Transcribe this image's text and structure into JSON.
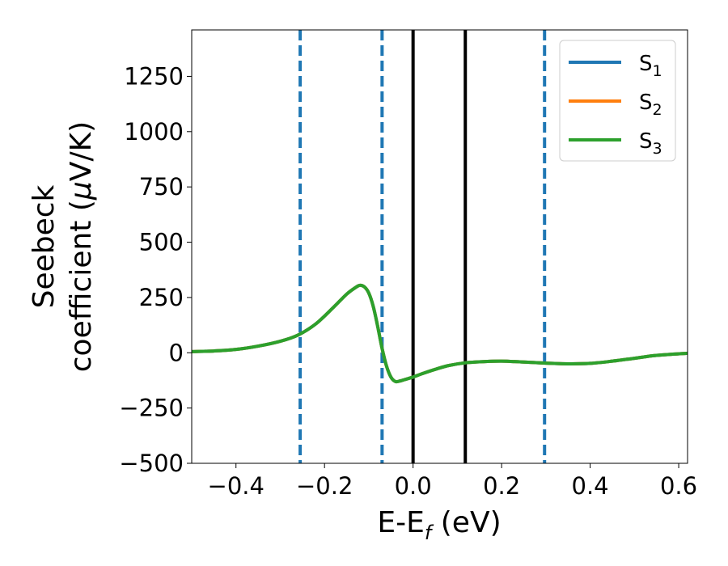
{
  "chart_data": {
    "type": "line",
    "title": "",
    "xlabel": "E-E",
    "xlabel_sub": "f",
    "xlabel_unit": " (eV)",
    "ylabel_line1": "Seebeck",
    "ylabel_line2": "coefficient  (",
    "ylabel_mu": "μ",
    "ylabel_unit": "V/K)",
    "xlim": [
      -0.5,
      0.62
    ],
    "ylim": [
      -500,
      1460
    ],
    "xticks": [
      -0.4,
      -0.2,
      0.0,
      0.2,
      0.4,
      0.6
    ],
    "xtick_labels": [
      "−0.4",
      "−0.2",
      "0.0",
      "0.2",
      "0.4",
      "0.6"
    ],
    "yticks": [
      -500,
      -250,
      0,
      250,
      500,
      750,
      1000,
      1250
    ],
    "ytick_labels": [
      "−500",
      "−250",
      "0",
      "250",
      "500",
      "750",
      "1000",
      "1250"
    ],
    "grid": false,
    "legend_position": "top-right",
    "series": [
      {
        "name": "S",
        "sub": "1",
        "color": "#1f77b4",
        "x": [
          -0.5,
          -0.45,
          -0.4,
          -0.35,
          -0.3,
          -0.26,
          -0.22,
          -0.18,
          -0.15,
          -0.13,
          -0.12,
          -0.11,
          -0.1,
          -0.09,
          -0.08,
          -0.07,
          -0.06,
          -0.05,
          -0.04,
          -0.03,
          -0.02,
          0.0,
          0.02,
          0.05,
          0.08,
          0.12,
          0.16,
          0.2,
          0.25,
          0.3,
          0.35,
          0.4,
          0.45,
          0.5,
          0.55,
          0.62
        ],
        "y": [
          5,
          8,
          15,
          30,
          52,
          80,
          130,
          205,
          265,
          295,
          305,
          298,
          270,
          210,
          120,
          20,
          -60,
          -110,
          -130,
          -128,
          -122,
          -110,
          -95,
          -75,
          -58,
          -45,
          -40,
          -38,
          -42,
          -47,
          -50,
          -48,
          -38,
          -25,
          -12,
          -2
        ]
      },
      {
        "name": "S",
        "sub": "2",
        "color": "#ff7f0e",
        "x": [
          -0.5,
          -0.45,
          -0.4,
          -0.35,
          -0.3,
          -0.26,
          -0.22,
          -0.18,
          -0.15,
          -0.13,
          -0.12,
          -0.11,
          -0.1,
          -0.09,
          -0.08,
          -0.07,
          -0.06,
          -0.05,
          -0.04,
          -0.03,
          -0.02,
          0.0,
          0.02,
          0.05,
          0.08,
          0.12,
          0.16,
          0.2,
          0.25,
          0.3,
          0.35,
          0.4,
          0.45,
          0.5,
          0.55,
          0.62
        ],
        "y": [
          5,
          8,
          15,
          30,
          52,
          80,
          130,
          205,
          265,
          295,
          305,
          298,
          270,
          210,
          120,
          20,
          -60,
          -110,
          -130,
          -128,
          -122,
          -110,
          -95,
          -75,
          -58,
          -45,
          -40,
          -38,
          -42,
          -47,
          -50,
          -48,
          -38,
          -25,
          -12,
          -2
        ]
      },
      {
        "name": "S",
        "sub": "3",
        "color": "#2ca02c",
        "x": [
          -0.5,
          -0.45,
          -0.4,
          -0.35,
          -0.3,
          -0.26,
          -0.22,
          -0.18,
          -0.15,
          -0.13,
          -0.12,
          -0.11,
          -0.1,
          -0.09,
          -0.08,
          -0.07,
          -0.06,
          -0.05,
          -0.04,
          -0.03,
          -0.02,
          0.0,
          0.02,
          0.05,
          0.08,
          0.12,
          0.16,
          0.2,
          0.25,
          0.3,
          0.35,
          0.4,
          0.45,
          0.5,
          0.55,
          0.62
        ],
        "y": [
          5,
          8,
          15,
          30,
          52,
          80,
          130,
          205,
          265,
          295,
          305,
          298,
          270,
          210,
          120,
          20,
          -60,
          -110,
          -130,
          -128,
          -122,
          -110,
          -95,
          -75,
          -58,
          -45,
          -40,
          -38,
          -42,
          -47,
          -50,
          -48,
          -38,
          -25,
          -12,
          -2
        ]
      }
    ],
    "vlines": [
      {
        "x": -0.255,
        "style": "dashed",
        "color": "#1f77b4"
      },
      {
        "x": -0.07,
        "style": "dashed",
        "color": "#1f77b4"
      },
      {
        "x": 0.0,
        "style": "solid",
        "color": "#000000"
      },
      {
        "x": 0.118,
        "style": "solid",
        "color": "#000000"
      },
      {
        "x": 0.297,
        "style": "dashed",
        "color": "#1f77b4"
      }
    ]
  }
}
